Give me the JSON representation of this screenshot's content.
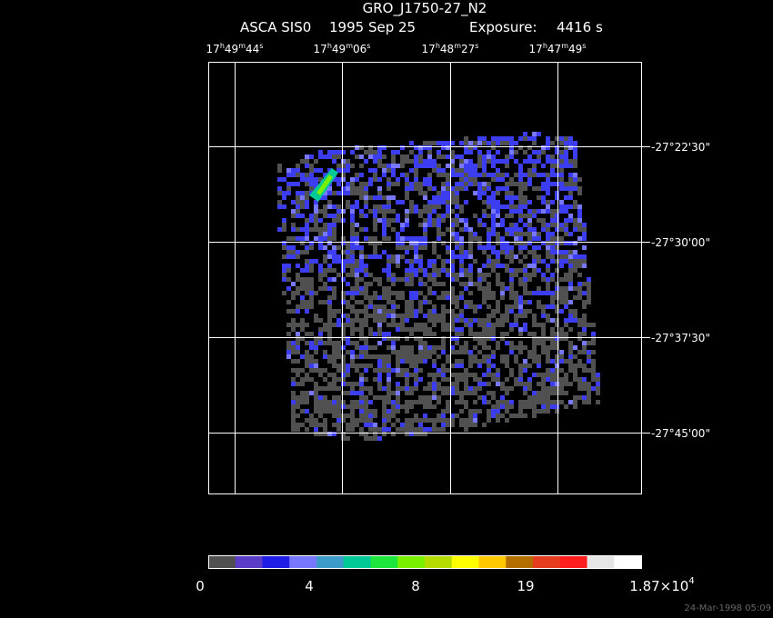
{
  "header": {
    "title": "GRO_J1750-27_N2",
    "instrument": "ASCA SIS0",
    "date": "1995 Sep 25",
    "exposure_label": "Exposure:",
    "exposure": "4416 s"
  },
  "ra_labels": [
    [
      "17",
      "h",
      "49",
      "m",
      "44",
      "s"
    ],
    [
      "17",
      "h",
      "49",
      "m",
      "06",
      "s"
    ],
    [
      "17",
      "h",
      "48",
      "m",
      "27",
      "s"
    ],
    [
      "17",
      "h",
      "47",
      "m",
      "49",
      "s"
    ]
  ],
  "dec_labels": [
    "-27°22'30\"",
    "-27°30'00\"",
    "-27°37'30\"",
    "-27°45'00\""
  ],
  "colorbar": {
    "colors": [
      "#505050",
      "#5a3cc8",
      "#1e1ee6",
      "#7878ff",
      "#3c9bc8",
      "#00c896",
      "#1ee63c",
      "#78f000",
      "#b4dc00",
      "#ffff00",
      "#ffc800",
      "#b46e00",
      "#e63c1e",
      "#ff1e1e",
      "#e6e6e6",
      "#ffffff"
    ],
    "labels": [
      [
        "0"
      ],
      [
        "4"
      ],
      [
        "8"
      ],
      [
        "19"
      ],
      [
        "1.87×10",
        "4"
      ]
    ]
  },
  "timestamp": "24-Mar-1998 05:09"
}
